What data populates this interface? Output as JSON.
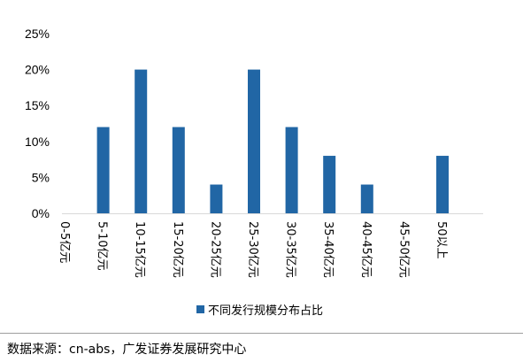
{
  "chart_data": {
    "type": "bar",
    "categories": [
      "0-5亿元",
      "5-10亿元",
      "10-15亿元",
      "15-20亿元",
      "20-25亿元",
      "25-30亿元",
      "30-35亿元",
      "35-40亿元",
      "40-45亿元",
      "45-50亿元",
      "50以上"
    ],
    "series": [
      {
        "name": "不同发行规模分布占比",
        "values": [
          0,
          12,
          20,
          12,
          4,
          20,
          12,
          8,
          4,
          0,
          8
        ]
      }
    ],
    "ylim": [
      0,
      25
    ],
    "yticks": [
      "0%",
      "5%",
      "10%",
      "15%",
      "20%",
      "25%"
    ],
    "y_unit": "%",
    "grid": false,
    "legend_position": "bottom",
    "bar_color": "#2166a5"
  },
  "source": "数据来源：cn-abs，广发证券发展研究中心"
}
